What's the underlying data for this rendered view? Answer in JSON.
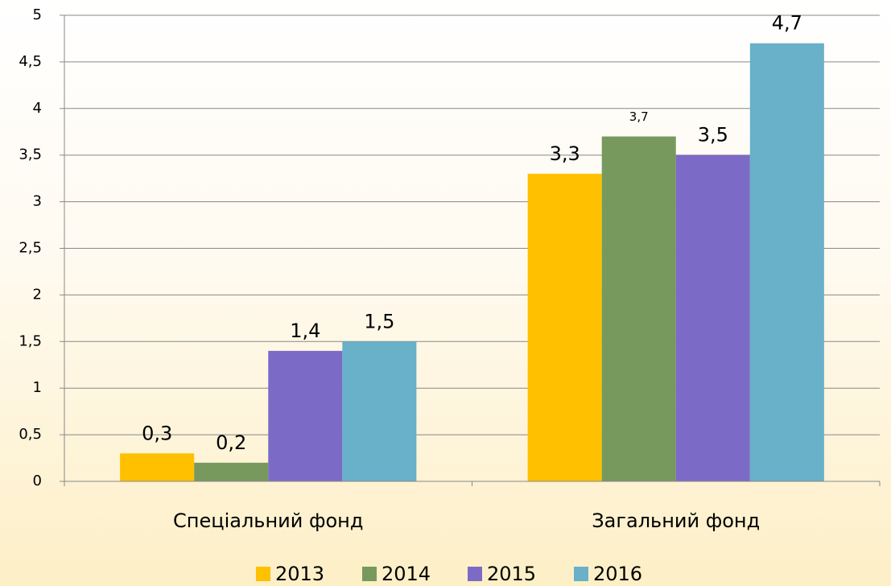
{
  "chart_data": {
    "type": "bar",
    "categories": [
      "Спеціальний фонд",
      "Загальний фонд"
    ],
    "series": [
      {
        "name": "2013",
        "color": "#ffc000",
        "values": [
          0.3,
          3.3
        ],
        "value_labels": [
          "0,3",
          "3,3"
        ]
      },
      {
        "name": "2014",
        "color": "#77995d",
        "values": [
          0.2,
          3.7
        ],
        "value_labels": [
          "0,2",
          "3,7"
        ]
      },
      {
        "name": "2015",
        "color": "#7b6bc6",
        "values": [
          1.4,
          3.5
        ],
        "value_labels": [
          "1,4",
          "3,5"
        ]
      },
      {
        "name": "2016",
        "color": "#69b0c9",
        "values": [
          1.5,
          4.7
        ],
        "value_labels": [
          "1,5",
          "4,7"
        ]
      }
    ],
    "ylim": [
      0,
      5
    ],
    "yticks": [
      0,
      {
        "value": 0.5,
        "label": "0,5"
      },
      1,
      {
        "value": 1.5,
        "label": "1,5"
      },
      2,
      {
        "value": 2.5,
        "label": "2,5"
      },
      3,
      {
        "value": 3.5,
        "label": "3,5"
      },
      4,
      {
        "value": 4.5,
        "label": "4,5"
      },
      5
    ],
    "grid": true,
    "legend": "bottom"
  }
}
